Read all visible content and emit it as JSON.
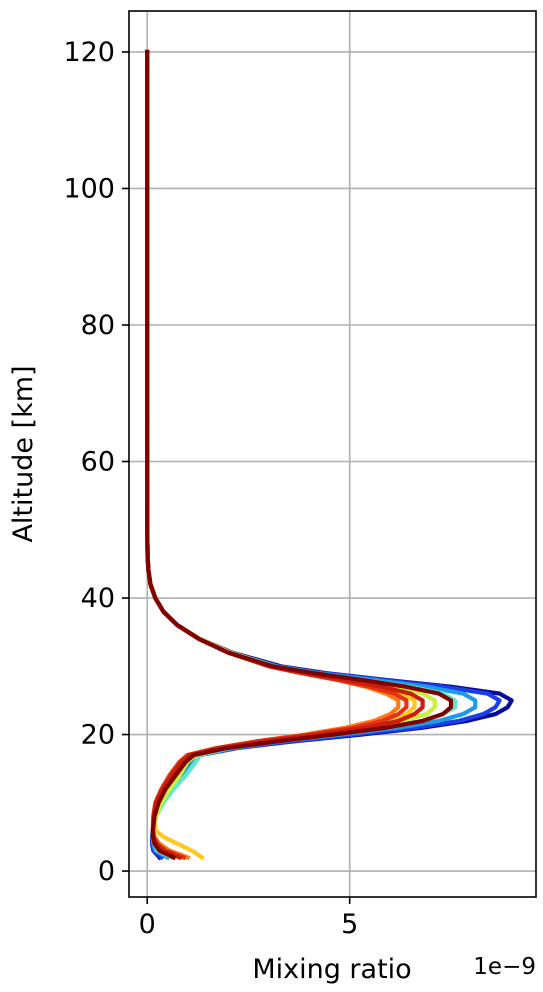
{
  "chart_data": {
    "type": "line",
    "xlabel": "Mixing ratio",
    "ylabel": "Altitude [km]",
    "x_offset_label": "1e−9",
    "x_scale": 1e-09,
    "xlim": [
      -0.45,
      9.6
    ],
    "ylim": [
      -3.8,
      126
    ],
    "xticks": [
      0,
      5
    ],
    "xtick_labels": [
      "0",
      "5"
    ],
    "yticks": [
      0,
      20,
      40,
      60,
      80,
      100,
      120
    ],
    "ytick_labels": [
      "0",
      "20",
      "40",
      "60",
      "80",
      "100",
      "120"
    ],
    "grid": true,
    "altitude": [
      2,
      3,
      4,
      5,
      6,
      8,
      10,
      12,
      14,
      16,
      17,
      18,
      19,
      20,
      21,
      22,
      23,
      24,
      25,
      26,
      27,
      28,
      29,
      30,
      32,
      34,
      36,
      38,
      40,
      42,
      44,
      46,
      48,
      50,
      60,
      70,
      80,
      90,
      100,
      110,
      120
    ],
    "series": [
      {
        "color": "#0a0a9a",
        "values": [
          0.3,
          0.15,
          0.12,
          0.12,
          0.14,
          0.18,
          0.3,
          0.5,
          0.75,
          1.0,
          1.3,
          2.2,
          3.6,
          5.3,
          6.8,
          7.9,
          8.6,
          8.9,
          9.0,
          8.7,
          7.5,
          5.9,
          4.4,
          3.3,
          2.1,
          1.3,
          0.75,
          0.4,
          0.2,
          0.08,
          0.03,
          0.01,
          0.005,
          0.002,
          0.0005,
          0.0002,
          0.0001,
          0.0001,
          0.0001,
          0.0001,
          0.0001
        ]
      },
      {
        "color": "#1a3fe8",
        "values": [
          0.35,
          0.16,
          0.13,
          0.12,
          0.14,
          0.18,
          0.3,
          0.52,
          0.8,
          1.05,
          1.3,
          2.2,
          3.5,
          5.1,
          6.6,
          7.7,
          8.3,
          8.6,
          8.7,
          8.4,
          7.3,
          5.8,
          4.3,
          3.2,
          2.05,
          1.3,
          0.75,
          0.4,
          0.2,
          0.08,
          0.03,
          0.01,
          0.005,
          0.002,
          0.0005,
          0.0002,
          0.0001,
          0.0001,
          0.0001,
          0.0001,
          0.0001
        ]
      },
      {
        "color": "#1e9be6",
        "values": [
          0.5,
          0.2,
          0.15,
          0.13,
          0.14,
          0.2,
          0.35,
          0.6,
          0.9,
          1.15,
          1.3,
          2.1,
          3.3,
          4.8,
          6.2,
          7.2,
          7.8,
          8.1,
          8.1,
          7.8,
          6.9,
          5.6,
          4.2,
          3.2,
          2.05,
          1.3,
          0.75,
          0.4,
          0.2,
          0.08,
          0.03,
          0.01,
          0.005,
          0.002,
          0.0005,
          0.0002,
          0.0001,
          0.0001,
          0.0001,
          0.0001,
          0.0001
        ]
      },
      {
        "color": "#5fe8c8",
        "values": [
          0.6,
          0.25,
          0.17,
          0.14,
          0.15,
          0.22,
          0.4,
          0.65,
          0.95,
          1.2,
          1.3,
          2.0,
          3.1,
          4.5,
          5.8,
          6.8,
          7.3,
          7.6,
          7.6,
          7.3,
          6.5,
          5.3,
          4.1,
          3.1,
          2.05,
          1.3,
          0.75,
          0.4,
          0.2,
          0.08,
          0.03,
          0.01,
          0.005,
          0.002,
          0.0005,
          0.0002,
          0.0001,
          0.0001,
          0.0001,
          0.0001,
          0.0001
        ]
      },
      {
        "color": "#c8f03c",
        "values": [
          0.8,
          0.35,
          0.22,
          0.16,
          0.16,
          0.22,
          0.35,
          0.55,
          0.8,
          1.0,
          1.2,
          1.9,
          2.9,
          4.2,
          5.4,
          6.3,
          6.9,
          7.1,
          7.1,
          6.8,
          6.1,
          5.1,
          4.0,
          3.1,
          2.05,
          1.3,
          0.75,
          0.4,
          0.2,
          0.08,
          0.03,
          0.01,
          0.005,
          0.002,
          0.0005,
          0.0002,
          0.0001,
          0.0001,
          0.0001,
          0.0001,
          0.0001
        ]
      },
      {
        "color": "#ffc81e",
        "values": [
          1.35,
          1.1,
          0.75,
          0.4,
          0.2,
          0.18,
          0.25,
          0.4,
          0.6,
          0.85,
          1.1,
          1.8,
          2.8,
          4.0,
          5.1,
          5.9,
          6.4,
          6.6,
          6.6,
          6.3,
          5.7,
          4.9,
          3.9,
          3.1,
          2.05,
          1.3,
          0.75,
          0.4,
          0.2,
          0.08,
          0.03,
          0.01,
          0.005,
          0.002,
          0.0005,
          0.0002,
          0.0001,
          0.0001,
          0.0001,
          0.0001,
          0.0001
        ]
      },
      {
        "color": "#ff7a14",
        "values": [
          1.0,
          0.55,
          0.3,
          0.18,
          0.15,
          0.15,
          0.2,
          0.35,
          0.55,
          0.8,
          1.0,
          1.7,
          2.7,
          3.9,
          4.9,
          5.6,
          6.0,
          6.2,
          6.2,
          5.9,
          5.4,
          4.7,
          3.8,
          3.0,
          2.0,
          1.28,
          0.75,
          0.4,
          0.2,
          0.08,
          0.03,
          0.01,
          0.005,
          0.002,
          0.0005,
          0.0002,
          0.0001,
          0.0001,
          0.0001,
          0.0001,
          0.0001
        ]
      },
      {
        "color": "#e63214",
        "values": [
          0.9,
          0.45,
          0.25,
          0.16,
          0.14,
          0.15,
          0.2,
          0.35,
          0.55,
          0.8,
          1.0,
          1.7,
          2.7,
          4.0,
          5.1,
          5.8,
          6.2,
          6.4,
          6.4,
          6.1,
          5.5,
          4.7,
          3.8,
          3.0,
          2.0,
          1.28,
          0.75,
          0.4,
          0.2,
          0.08,
          0.03,
          0.01,
          0.005,
          0.002,
          0.0005,
          0.0002,
          0.0001,
          0.0001,
          0.0001,
          0.0001,
          0.0001
        ]
      },
      {
        "color": "#c81e0a",
        "values": [
          0.8,
          0.4,
          0.22,
          0.15,
          0.14,
          0.16,
          0.22,
          0.38,
          0.6,
          0.85,
          1.05,
          1.8,
          2.9,
          4.2,
          5.4,
          6.2,
          6.6,
          6.8,
          6.8,
          6.5,
          5.8,
          4.9,
          3.9,
          3.05,
          2.0,
          1.28,
          0.75,
          0.4,
          0.2,
          0.08,
          0.03,
          0.01,
          0.005,
          0.002,
          0.0005,
          0.0002,
          0.0001,
          0.0001,
          0.0001,
          0.0001,
          0.0001
        ]
      },
      {
        "color": "#800000",
        "values": [
          0.65,
          0.3,
          0.18,
          0.14,
          0.14,
          0.18,
          0.28,
          0.45,
          0.7,
          0.95,
          1.15,
          1.95,
          3.2,
          4.6,
          5.9,
          6.8,
          7.3,
          7.5,
          7.5,
          7.2,
          6.4,
          5.3,
          4.1,
          3.1,
          2.0,
          1.28,
          0.75,
          0.4,
          0.2,
          0.08,
          0.03,
          0.01,
          0.005,
          0.002,
          0.0005,
          0.0002,
          0.0001,
          0.0001,
          0.0001,
          0.0001,
          0.0001
        ]
      }
    ]
  }
}
